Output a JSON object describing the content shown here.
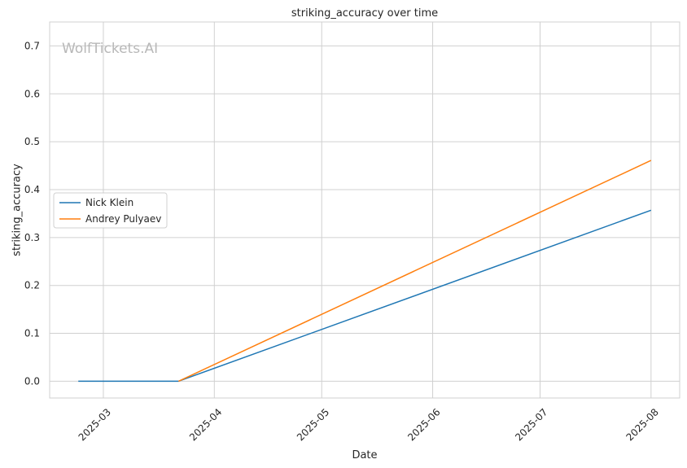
{
  "watermark": "WolfTickets.AI",
  "chart_data": {
    "type": "line",
    "title": "striking_accuracy over time",
    "xlabel": "Date",
    "ylabel": "striking_accuracy",
    "x_scale": "date",
    "xlim": [
      "2025-02-14",
      "2025-08-09"
    ],
    "ylim": [
      -0.035,
      0.75
    ],
    "x_ticks": [
      "2025-03-01",
      "2025-04-01",
      "2025-05-01",
      "2025-06-01",
      "2025-07-01",
      "2025-08-01"
    ],
    "x_tick_labels": [
      "2025-03",
      "2025-04",
      "2025-05",
      "2025-06",
      "2025-07",
      "2025-08"
    ],
    "y_ticks": [
      0.0,
      0.1,
      0.2,
      0.3,
      0.4,
      0.5,
      0.6,
      0.7
    ],
    "y_tick_labels": [
      "0.0",
      "0.1",
      "0.2",
      "0.3",
      "0.4",
      "0.5",
      "0.6",
      "0.7"
    ],
    "grid": true,
    "legend_position": "center-left",
    "series": [
      {
        "name": "Nick Klein",
        "color": "#1f77b4",
        "points": [
          {
            "x": "2025-02-22",
            "y": 0.0
          },
          {
            "x": "2025-03-22",
            "y": 0.0
          },
          {
            "x": "2025-08-01",
            "y": 0.357
          }
        ]
      },
      {
        "name": "Andrey Pulyaev",
        "color": "#ff7f0e",
        "points": [
          {
            "x": "2025-03-22",
            "y": 0.0
          },
          {
            "x": "2025-08-01",
            "y": 0.461
          }
        ]
      }
    ]
  }
}
